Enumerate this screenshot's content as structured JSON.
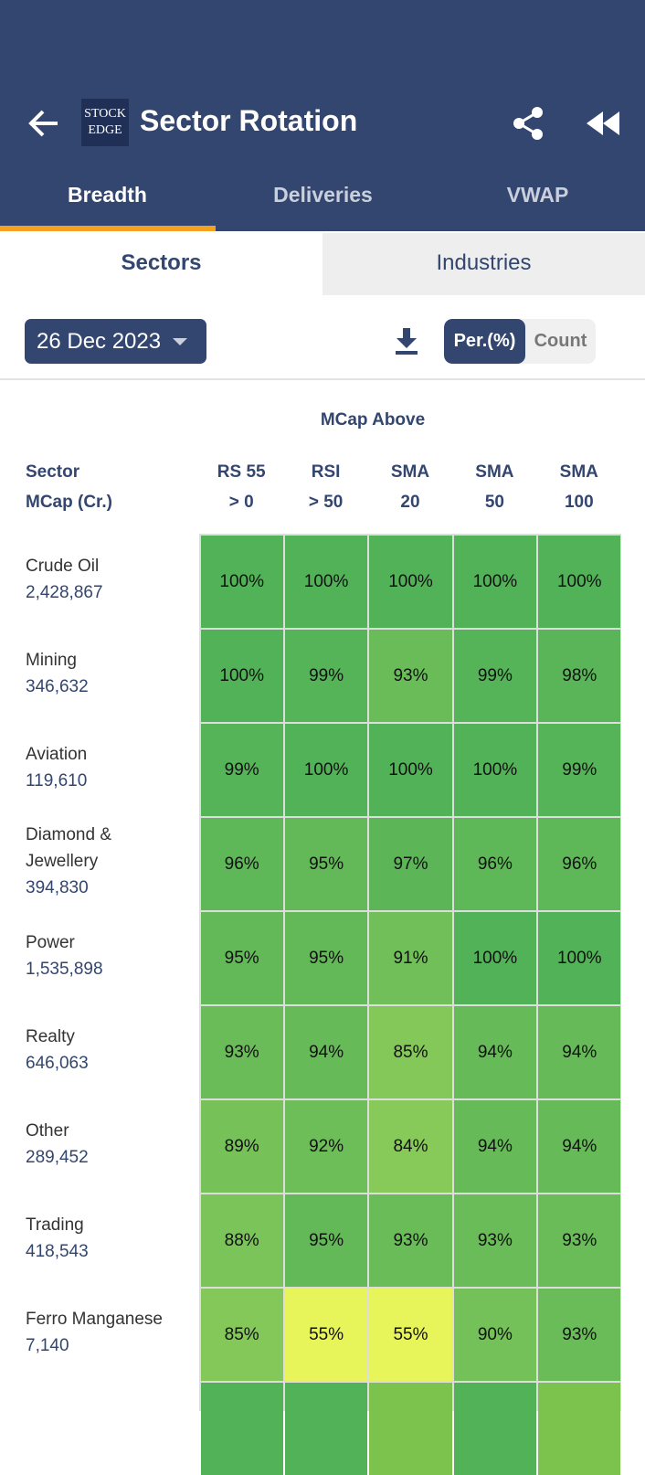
{
  "header": {
    "title": "Sector Rotation",
    "logo": [
      "STOCK",
      "EDGE"
    ]
  },
  "tabs": [
    "Breadth",
    "Deliveries",
    "VWAP"
  ],
  "subtabs": [
    "Sectors",
    "Industries"
  ],
  "controls": {
    "date": "26 Dec 2023",
    "toggle": [
      "Per.(%)",
      "Count"
    ]
  },
  "table": {
    "group_header": "MCap Above",
    "first_header": [
      "Sector",
      "MCap (Cr.)"
    ],
    "columns": [
      [
        "RS 55",
        "> 0"
      ],
      [
        "RSI",
        "> 50"
      ],
      [
        "SMA",
        "20"
      ],
      [
        "SMA",
        "50"
      ],
      [
        "SMA",
        "100"
      ]
    ],
    "rows": [
      {
        "name": [
          "Crude Oil"
        ],
        "mcap": "2,428,867",
        "cells": [
          "100%",
          "100%",
          "100%",
          "100%",
          "100%"
        ]
      },
      {
        "name": [
          "Mining"
        ],
        "mcap": "346,632",
        "cells": [
          "100%",
          "99%",
          "93%",
          "99%",
          "98%"
        ]
      },
      {
        "name": [
          "Aviation"
        ],
        "mcap": "119,610",
        "cells": [
          "99%",
          "100%",
          "100%",
          "100%",
          "99%"
        ]
      },
      {
        "name": [
          "Diamond &",
          "Jewellery"
        ],
        "mcap": "394,830",
        "cells": [
          "96%",
          "95%",
          "97%",
          "96%",
          "96%"
        ]
      },
      {
        "name": [
          "Power"
        ],
        "mcap": "1,535,898",
        "cells": [
          "95%",
          "95%",
          "91%",
          "100%",
          "100%"
        ]
      },
      {
        "name": [
          "Realty"
        ],
        "mcap": "646,063",
        "cells": [
          "93%",
          "94%",
          "85%",
          "94%",
          "94%"
        ]
      },
      {
        "name": [
          "Other"
        ],
        "mcap": "289,452",
        "cells": [
          "89%",
          "92%",
          "84%",
          "94%",
          "94%"
        ]
      },
      {
        "name": [
          "Trading"
        ],
        "mcap": "418,543",
        "cells": [
          "88%",
          "95%",
          "93%",
          "93%",
          "93%"
        ]
      },
      {
        "name": [
          "Ferro Manganese"
        ],
        "mcap": "7,140",
        "cells": [
          "85%",
          "55%",
          "55%",
          "90%",
          "93%"
        ]
      }
    ]
  }
}
